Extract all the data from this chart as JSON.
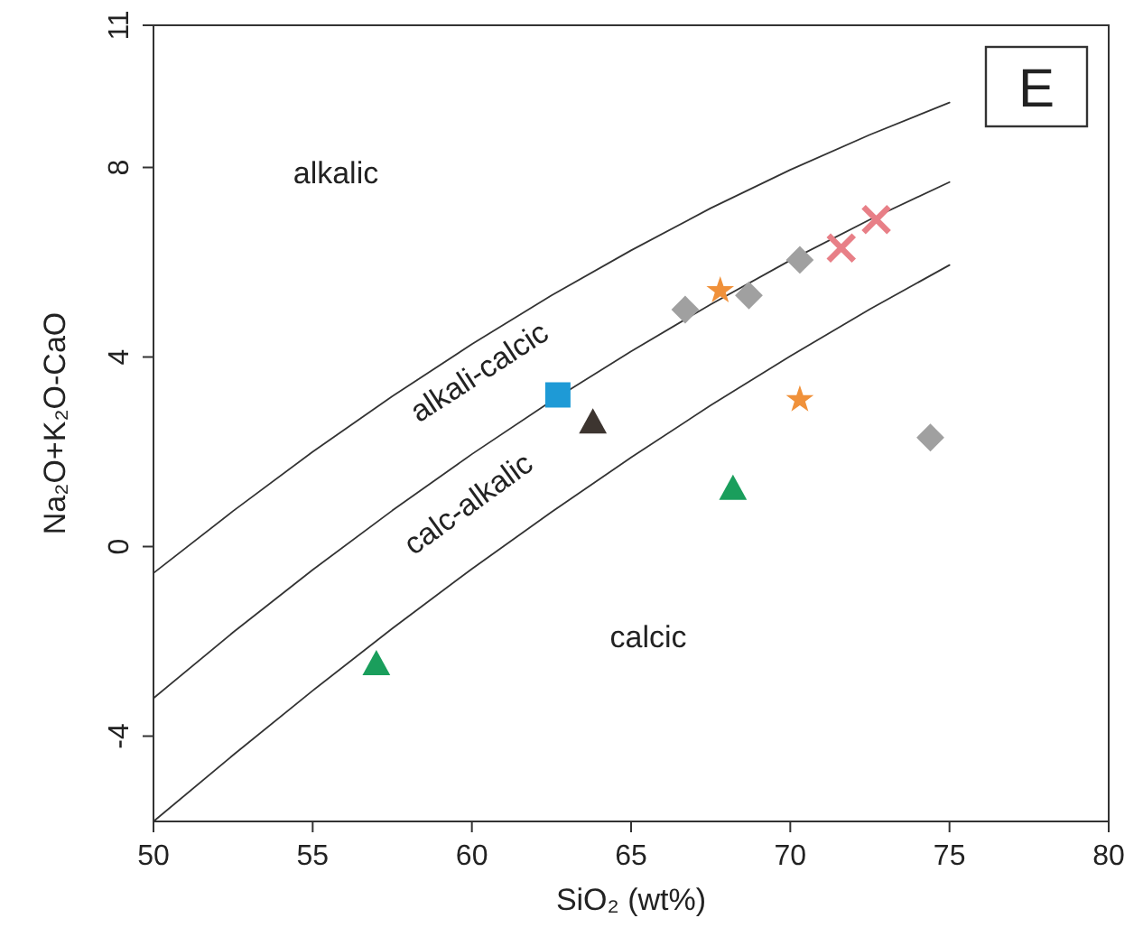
{
  "chart_data": {
    "type": "scatter",
    "xlabel": "SiO₂ (wt%)",
    "ylabel": "Na₂O+K₂O-CaO",
    "xlim": [
      50,
      80
    ],
    "ylim": [
      -5.8,
      11
    ],
    "xticks": [
      50,
      55,
      60,
      65,
      70,
      75,
      80
    ],
    "yticks": [
      -4,
      0,
      4,
      8,
      11
    ],
    "grid": false,
    "series": [
      {
        "type": "line",
        "color": "#333333",
        "marker": "none",
        "x": [
          50,
          52.5,
          55,
          57.5,
          60,
          62.5,
          65,
          67.5,
          70,
          72.5,
          75
        ],
        "values": [
          -0.56,
          0.75,
          2.0,
          3.17,
          4.27,
          5.3,
          6.25,
          7.14,
          7.95,
          8.69,
          9.37
        ]
      },
      {
        "type": "line",
        "color": "#333333",
        "marker": "none",
        "x": [
          50,
          52.5,
          55,
          57.5,
          60,
          62.5,
          65,
          67.5,
          70,
          72.5,
          75
        ],
        "values": [
          -3.2,
          -1.81,
          -0.49,
          0.76,
          1.95,
          3.07,
          4.12,
          5.11,
          6.04,
          6.9,
          7.69
        ]
      },
      {
        "type": "line",
        "color": "#333333",
        "marker": "none",
        "x": [
          50,
          52.5,
          55,
          57.5,
          60,
          62.5,
          65,
          67.5,
          70,
          72.5,
          75
        ],
        "values": [
          -5.8,
          -4.4,
          -3.04,
          -1.73,
          -0.47,
          0.73,
          1.88,
          2.98,
          4.02,
          5.01,
          5.94
        ]
      },
      {
        "color": "#1e9ad6",
        "marker": "square",
        "x": [
          62.7
        ],
        "values": [
          3.2
        ]
      },
      {
        "color": "#3d3530",
        "marker": "triangle",
        "x": [
          63.8
        ],
        "values": [
          2.6
        ]
      },
      {
        "color": "#1a9e5c",
        "marker": "triangle",
        "x": [
          68.2,
          57.0
        ],
        "values": [
          1.2,
          -2.5
        ]
      },
      {
        "color": "#f0913a",
        "marker": "star",
        "x": [
          67.8,
          70.3
        ],
        "values": [
          5.4,
          3.1
        ]
      },
      {
        "color": "#a0a0a0",
        "marker": "diamond",
        "x": [
          66.7,
          68.7,
          70.3,
          74.4
        ],
        "values": [
          5.0,
          5.3,
          6.05,
          2.3
        ]
      },
      {
        "color": "#e87f87",
        "marker": "cross",
        "x": [
          71.6,
          72.7
        ],
        "values": [
          6.3,
          6.9
        ]
      }
    ],
    "annotations": [
      "alkalic",
      "alkali-calcic",
      "calc-alkalic",
      "calcic",
      "E"
    ]
  }
}
